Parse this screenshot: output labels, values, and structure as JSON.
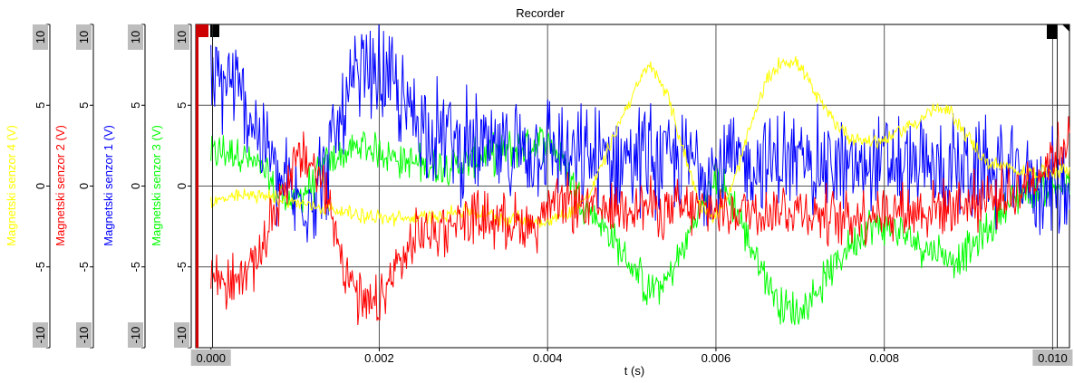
{
  "chart_data": {
    "type": "line",
    "title": "Recorder",
    "xlabel": "t (s)",
    "xlim": [
      -0.00018,
      0.0102
    ],
    "x_ticks": [
      "0.000",
      "0.002",
      "0.004",
      "0.006",
      "0.008",
      "0.010"
    ],
    "x_tick_values": [
      0,
      0.002,
      0.004,
      0.006,
      0.008,
      0.01
    ],
    "ylim": [
      -10,
      10
    ],
    "y_ticks": [
      "10",
      "5",
      "0",
      "-5",
      "-10"
    ],
    "y_tick_values": [
      10,
      5,
      0,
      -5,
      -10
    ],
    "grid": true,
    "y_axes": [
      {
        "label": "Magnetski senzor 4 (V)",
        "color": "#ffff00",
        "series": "s4"
      },
      {
        "label": "Magnetski senzor 2 (V)",
        "color": "#ff0000",
        "series": "s2"
      },
      {
        "label": "Magnetski senzor 1 (V)",
        "color": "#0000ff",
        "series": "s1"
      },
      {
        "label": "Magnetski senzor 3 (V)",
        "color": "#00ff00",
        "series": "s3"
      }
    ],
    "series": [
      {
        "id": "s3",
        "color": "#00ff00",
        "noise": 1.5,
        "x": [
          0,
          0.0003,
          0.0006,
          0.0008,
          0.001,
          0.0012,
          0.0014,
          0.0016,
          0.0018,
          0.002,
          0.0023,
          0.0027,
          0.003,
          0.0034,
          0.0037,
          0.004,
          0.0042,
          0.0044,
          0.0046,
          0.0048,
          0.005,
          0.0052,
          0.0054,
          0.0056,
          0.0058,
          0.006,
          0.0062,
          0.0064,
          0.0066,
          0.0068,
          0.007,
          0.0072,
          0.0074,
          0.0076,
          0.0078,
          0.008,
          0.0082,
          0.0084,
          0.0086,
          0.0088,
          0.009,
          0.0092,
          0.0094,
          0.0096,
          0.0098,
          0.01,
          0.0102
        ],
        "values": [
          2,
          2.2,
          1,
          -0.5,
          -1,
          0.2,
          1.5,
          2,
          2.5,
          2.2,
          1.5,
          1.2,
          1.5,
          2,
          2.5,
          2.8,
          1.5,
          -1,
          -2,
          -3.5,
          -5,
          -6.5,
          -6,
          -4,
          -1.5,
          0.5,
          -1,
          -3.5,
          -5.8,
          -7.5,
          -7.8,
          -6.5,
          -5,
          -3.5,
          -2.5,
          -2.5,
          -3,
          -3.5,
          -4,
          -4.5,
          -4,
          -3,
          -1.5,
          -0.5,
          -0.2,
          0,
          0
        ]
      },
      {
        "id": "s1",
        "color": "#0000ff",
        "noise": 4,
        "x": [
          0,
          0.0002,
          0.0004,
          0.0006,
          0.0008,
          0.001,
          0.0012,
          0.0014,
          0.0016,
          0.0018,
          0.002,
          0.0023,
          0.0026,
          0.003,
          0.0034,
          0.0037,
          0.004,
          0.0043,
          0.0046,
          0.005,
          0.0054,
          0.0058,
          0.006,
          0.0064,
          0.0068,
          0.0072,
          0.0076,
          0.008,
          0.0084,
          0.0088,
          0.0092,
          0.0096,
          0.01,
          0.0102
        ],
        "values": [
          6,
          6.5,
          5,
          3,
          0.5,
          -1,
          -0.5,
          1.5,
          5,
          6.8,
          7,
          5,
          3.5,
          2.5,
          2,
          2.5,
          2.5,
          1.5,
          1.5,
          2,
          1.5,
          1.5,
          1,
          1.5,
          1.5,
          1.5,
          1,
          1.5,
          1,
          1,
          1,
          0.5,
          0,
          0
        ]
      },
      {
        "id": "s4",
        "color": "#ffff00",
        "noise": 0.6,
        "x": [
          0,
          0.0005,
          0.001,
          0.0015,
          0.002,
          0.0025,
          0.003,
          0.0035,
          0.004,
          0.0043,
          0.0045,
          0.0047,
          0.0049,
          0.0051,
          0.0052,
          0.0054,
          0.0056,
          0.0058,
          0.006,
          0.0062,
          0.0064,
          0.0066,
          0.0068,
          0.007,
          0.0072,
          0.0074,
          0.0076,
          0.0078,
          0.008,
          0.0082,
          0.0084,
          0.0086,
          0.0088,
          0.009,
          0.0092,
          0.0095,
          0.0098,
          0.01,
          0.0102
        ],
        "values": [
          -1,
          -0.5,
          -1,
          -1.5,
          -2,
          -2,
          -1.5,
          -2,
          -2.2,
          -1.5,
          -0.5,
          2,
          4.5,
          6.5,
          7.5,
          6,
          2.5,
          -1,
          -2,
          0,
          3.5,
          6.5,
          7.8,
          7.5,
          5.5,
          4,
          3,
          2.8,
          2.8,
          3.5,
          4,
          4.8,
          4.5,
          3,
          1.5,
          1,
          0.8,
          1,
          1
        ]
      },
      {
        "id": "s2",
        "color": "#ff0000",
        "noise": 2.2,
        "x": [
          0,
          0.0003,
          0.0006,
          0.0008,
          0.001,
          0.0012,
          0.0014,
          0.0016,
          0.0018,
          0.002,
          0.0022,
          0.0025,
          0.003,
          0.0035,
          0.0038,
          0.004,
          0.0043,
          0.0046,
          0.005,
          0.0055,
          0.006,
          0.0065,
          0.007,
          0.0075,
          0.008,
          0.0085,
          0.009,
          0.0095,
          0.0098,
          0.01,
          0.0102
        ],
        "values": [
          -5.5,
          -6,
          -4,
          -1,
          1.5,
          1.5,
          -1,
          -5,
          -7.5,
          -7.5,
          -5,
          -3,
          -2,
          -2,
          -2.5,
          -1.5,
          -1,
          -1.5,
          -1,
          -1.5,
          -1.5,
          -1.5,
          -1.5,
          -2,
          -1.5,
          -1.5,
          -1,
          -0.5,
          0.5,
          2,
          3
        ]
      }
    ]
  }
}
